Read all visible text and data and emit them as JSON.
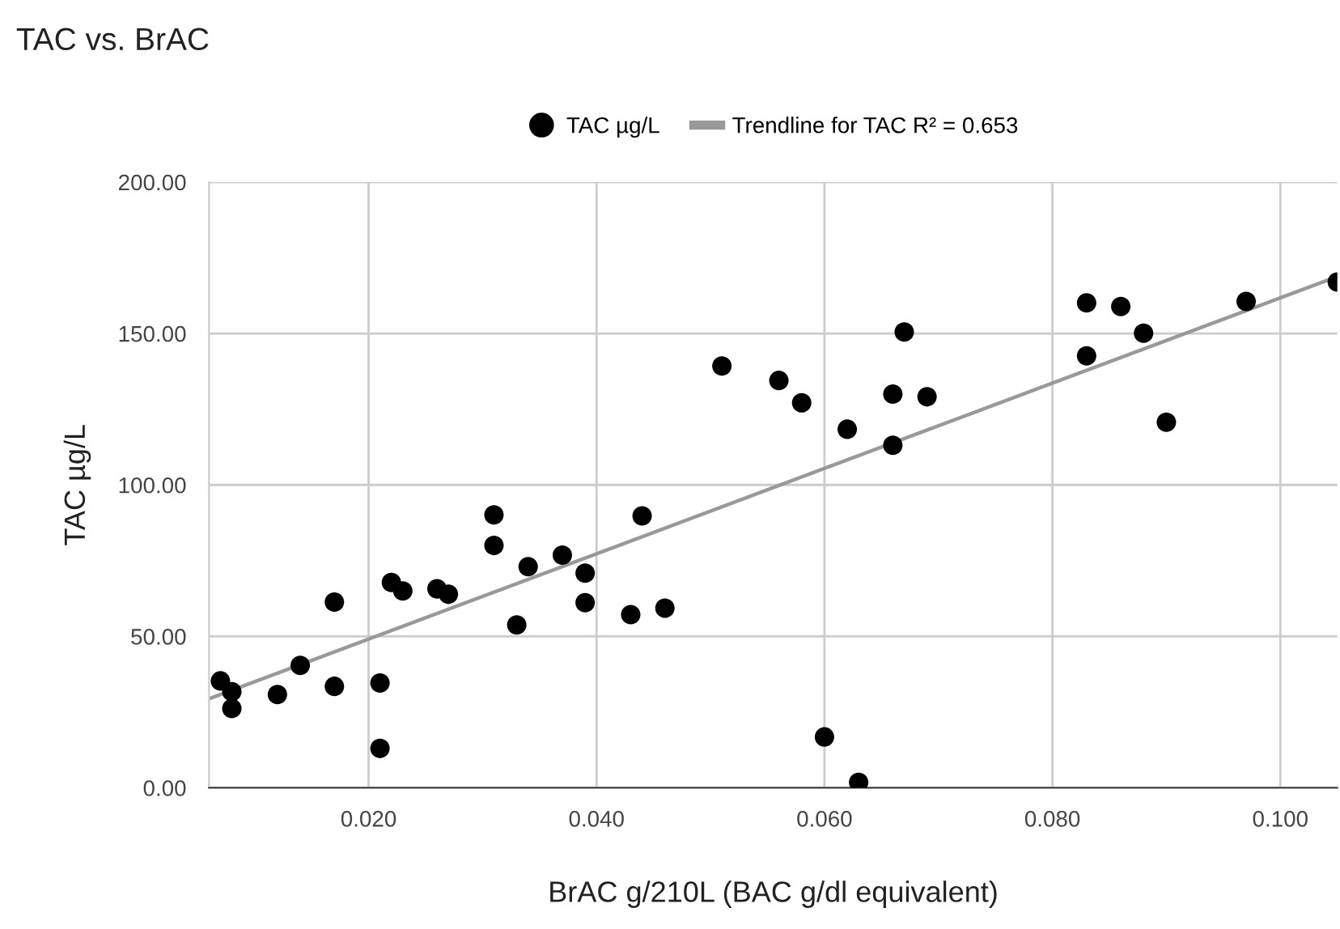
{
  "chart_data": {
    "type": "scatter",
    "title": "TAC vs. BrAC",
    "xlabel": "BrAC g/210L (BAC g/dl equivalent)",
    "ylabel": "TAC µg/L",
    "xlim": [
      0.006,
      0.105
    ],
    "xticks": [
      {
        "value": 0.02,
        "label": "0.020"
      },
      {
        "value": 0.04,
        "label": "0.040"
      },
      {
        "value": 0.06,
        "label": "0.060"
      },
      {
        "value": 0.08,
        "label": "0.080"
      },
      {
        "value": 0.1,
        "label": "0.100"
      }
    ],
    "ylim": [
      0,
      200
    ],
    "yticks": [
      {
        "value": 0,
        "label": "0.00"
      },
      {
        "value": 50,
        "label": "50.00"
      },
      {
        "value": 100,
        "label": "100.00"
      },
      {
        "value": 150,
        "label": "150.00"
      },
      {
        "value": 200,
        "label": "200.00"
      }
    ],
    "grid": true,
    "legend": "top",
    "marker": "circle",
    "series": [
      {
        "name": "TAC µg/L",
        "color": "#000000",
        "x": [
          0.007,
          0.008,
          0.008,
          0.012,
          0.014,
          0.017,
          0.017,
          0.021,
          0.021,
          0.022,
          0.023,
          0.026,
          0.027,
          0.031,
          0.031,
          0.033,
          0.034,
          0.037,
          0.039,
          0.039,
          0.043,
          0.044,
          0.046,
          0.051,
          0.056,
          0.058,
          0.062,
          0.06,
          0.063,
          0.066,
          0.066,
          0.067,
          0.069,
          0.083,
          0.083,
          0.086,
          0.088,
          0.09,
          0.097,
          0.105
        ],
        "values": [
          35.3,
          31.7,
          26.2,
          30.8,
          40.4,
          61.3,
          33.5,
          34.6,
          13.0,
          67.8,
          65.0,
          65.7,
          63.9,
          90.1,
          80.0,
          53.8,
          73.0,
          76.8,
          70.9,
          61.1,
          57.2,
          89.8,
          59.3,
          139.3,
          134.5,
          127.1,
          118.4,
          16.8,
          1.8,
          130.0,
          113.1,
          150.5,
          129.1,
          160.1,
          142.6,
          158.9,
          150.1,
          120.7,
          160.6,
          167.0
        ]
      },
      {
        "name": "Trendline for TAC R² = 0.653",
        "type": "line",
        "color": "#999999",
        "marker": "none",
        "x": [
          0.006,
          0.105
        ],
        "values": [
          29.4,
          168.8
        ]
      }
    ]
  }
}
